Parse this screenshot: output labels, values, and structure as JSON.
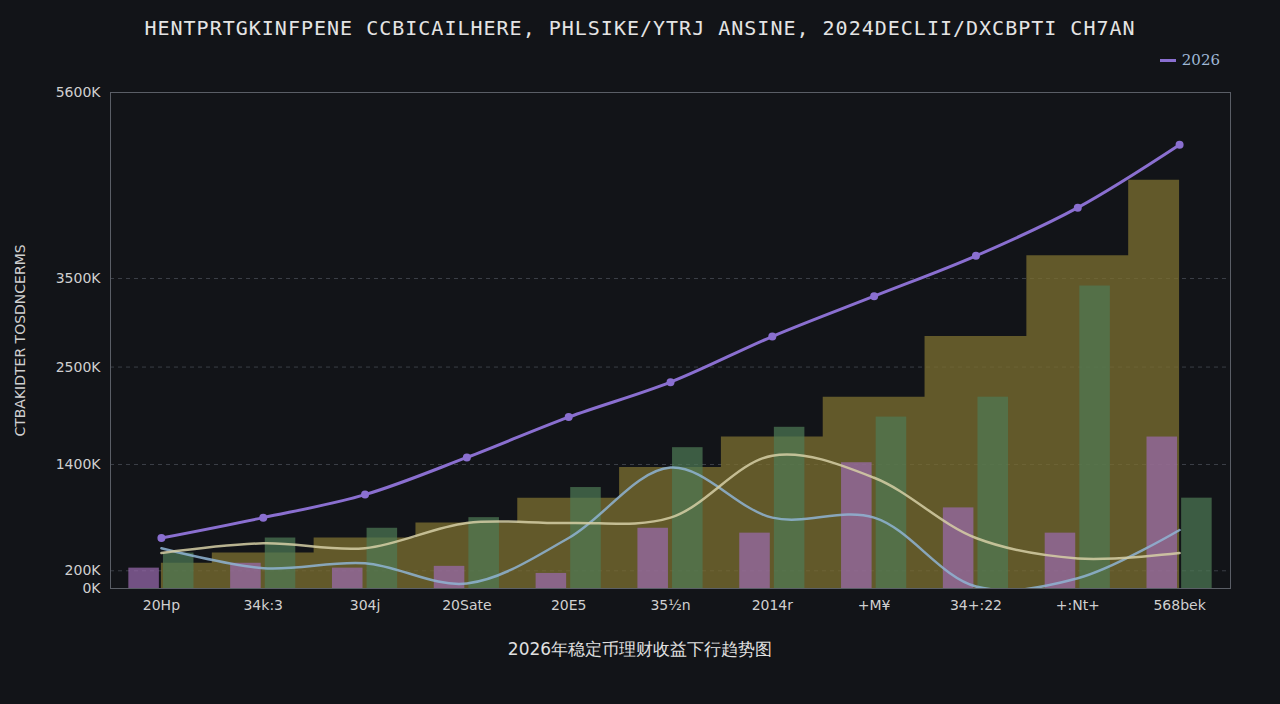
{
  "chart_data": {
    "type": "combo",
    "title": "HENTPRTGKINFPENE CCBICAILHERE, PHLSIKE/YTRJ ANSINE, 2024DECLII/DXCBPTI CH7AN",
    "caption": "2026年稳定币理财收益下行趋势图",
    "y_label": "CTBAKIDTER TOSDNCERMS",
    "categories": [
      "20Hp",
      "34k:3",
      "304j",
      "20Sate",
      "20E5",
      "35½n",
      "2014r",
      "+M¥",
      "34+:22",
      "+:Nt+",
      "568bek"
    ],
    "series": [
      {
        "name": "2026",
        "type": "line",
        "color": "#8a6fd0",
        "marker": "dot",
        "values": [
          570,
          800,
          1060,
          1480,
          1935,
          2330,
          2845,
          3300,
          3756,
          4300,
          5010
        ]
      },
      {
        "type": "area",
        "color": "#7d7030",
        "values": [
          285,
          400,
          570,
          740,
          1020,
          1365,
          1710,
          2160,
          2845,
          3756,
          4610
        ]
      },
      {
        "type": "bar",
        "color": "#9b6bb0",
        "values": [
          230,
          285,
          230,
          250,
          170,
          680,
          625,
          1420,
          910,
          625,
          1710
        ]
      },
      {
        "type": "bar",
        "color": "#4f7a55",
        "values": [
          400,
          570,
          680,
          800,
          1140,
          1590,
          1820,
          1935,
          2160,
          3415,
          1020
        ]
      },
      {
        "type": "line",
        "color": "#8fb4d4",
        "values": [
          455,
          230,
          285,
          57,
          570,
          1365,
          800,
          800,
          23,
          115,
          660
        ]
      },
      {
        "type": "line",
        "color": "#d6cfa6",
        "values": [
          400,
          510,
          455,
          740,
          740,
          800,
          1500,
          1250,
          570,
          340,
          400
        ]
      }
    ],
    "ylim": [
      0,
      5600
    ],
    "yticks": [
      {
        "value": 0,
        "label": "0K"
      },
      {
        "value": 200,
        "label": "200K"
      },
      {
        "value": 1400,
        "label": "1400K"
      },
      {
        "value": 2500,
        "label": "2500K"
      },
      {
        "value": 3500,
        "label": "3500K"
      },
      {
        "value": 5600,
        "label": "5600K"
      }
    ],
    "grid": true,
    "legend": "top-right"
  }
}
